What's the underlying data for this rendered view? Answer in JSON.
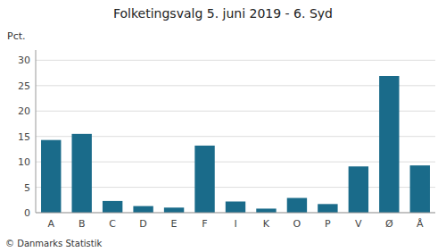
{
  "chart_data": {
    "type": "bar",
    "title": "Folketingsvalg 5. juni 2019 - 6. Syd",
    "categories": [
      "A",
      "B",
      "C",
      "D",
      "E",
      "F",
      "I",
      "K",
      "O",
      "P",
      "V",
      "Ø",
      "Å"
    ],
    "values": [
      14.3,
      15.5,
      2.3,
      1.3,
      1.0,
      13.2,
      2.2,
      0.8,
      2.9,
      1.7,
      9.1,
      26.9,
      9.3
    ],
    "color": "#1a6b8a",
    "ylabel": "Pct.",
    "footer": "© Danmarks Statistik",
    "ylim": [
      0,
      32
    ],
    "yticks": [
      0,
      5,
      10,
      15,
      20,
      25,
      30
    ],
    "grid": true
  }
}
